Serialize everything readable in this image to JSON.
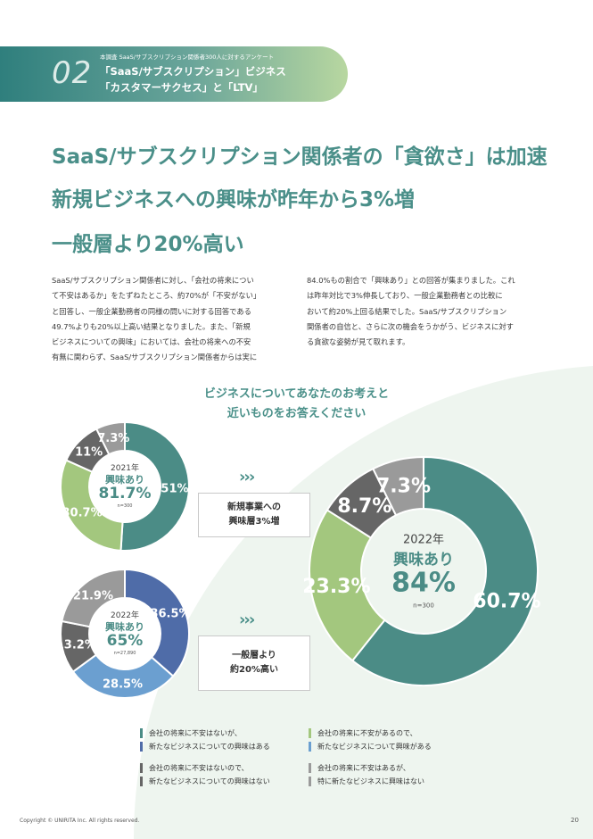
{
  "header": {
    "number": "02",
    "subtitle": "本調査 SaaS/サブスクリプション関係者300人に対するアンケート",
    "title_line1": "「SaaS/サブスクリプション」ビジネス",
    "title_line2": "「カスタマーサクセス」と「LTV」"
  },
  "headline": {
    "line1": "SaaS/サブスクリプション関係者の「貪欲さ」は加速",
    "line2": "新規ビジネスへの興味が昨年から3%増",
    "line3": "一般層より20%高い"
  },
  "body": {
    "left": [
      "SaaS/サブスクリプション関係者に対し、「会社の将来につい",
      "て不安はあるか」をたずねたところ、約70%が「不安がない」",
      "と回答し、一般企業勤務者の同様の問いに対する回答である",
      "49.7%よりも20%以上高い結果となりました。また、「新規",
      "ビジネスについての興味」においては、会社の将来への不安",
      "有無に関わらず、SaaS/サブスクリプション関係者からは実に"
    ],
    "right": [
      "84.0%もの割合で「興味あり」との回答が集まりました。これ",
      "は昨年対比で3%伸長しており、一般企業勤務者との比較に",
      "おいて約20%上回る結果でした。SaaS/サブスクリプション",
      "関係者の自信と、さらに次の機会をうかがう、ビジネスに対す",
      "る貪欲な姿勢が見て取れます。"
    ]
  },
  "question": {
    "line1": "ビジネスについてあなたのお考えと",
    "line2": "近いものをお答えください"
  },
  "colors": {
    "teal": "#4b8c86",
    "green": "#a3c77e",
    "darkgray": "#666666",
    "gray": "#9a9a9a",
    "blue": "#6b9fd0",
    "navy": "#4f6ca8"
  },
  "chart_data": [
    {
      "type": "pie",
      "title": "2021年",
      "center_label": "興味あり",
      "center_value": "81.7%",
      "n": "n=300",
      "slices": [
        {
          "value": 51,
          "label": "51%",
          "color": "#4b8c86"
        },
        {
          "value": 30.7,
          "label": "30.7%",
          "color": "#a3c77e"
        },
        {
          "value": 11,
          "label": "11%",
          "color": "#666666"
        },
        {
          "value": 7.3,
          "label": "7.3%",
          "color": "#9a9a9a"
        }
      ]
    },
    {
      "type": "pie",
      "title": "2022年",
      "center_label": "興味あり",
      "center_value": "65%",
      "n": "n=27,890",
      "slices": [
        {
          "value": 36.5,
          "label": "36.5%",
          "color": "#4f6ca8"
        },
        {
          "value": 28.5,
          "label": "28.5%",
          "color": "#6b9fd0"
        },
        {
          "value": 13.2,
          "label": "13.2%",
          "color": "#666666"
        },
        {
          "value": 21.9,
          "label": "21.9%",
          "color": "#9a9a9a"
        }
      ]
    },
    {
      "type": "pie",
      "title": "2022年",
      "center_label": "興味あり",
      "center_value": "84%",
      "n": "n=300",
      "slices": [
        {
          "value": 60.7,
          "label": "60.7%",
          "color": "#4b8c86"
        },
        {
          "value": 23.3,
          "label": "23.3%",
          "color": "#a3c77e"
        },
        {
          "value": 8.7,
          "label": "8.7%",
          "color": "#666666"
        },
        {
          "value": 7.3,
          "label": "7.3%",
          "color": "#9a9a9a"
        }
      ]
    }
  ],
  "callouts": {
    "arrows": "›››",
    "box1_line1": "新規事業への",
    "box1_line2": "興味層3%増",
    "box2_line1": "一般層より",
    "box2_line2": "約20%高い"
  },
  "legend": [
    {
      "line1": "会社の将来に不安はないが、",
      "line2": "新たなビジネスについての興味はある",
      "color1": "#4b8c86",
      "color2": "#4f6ca8"
    },
    {
      "line1": "会社の将来に不安があるので、",
      "line2": "新たなビジネスについて興味がある",
      "color1": "#a3c77e",
      "color2": "#6b9fd0"
    },
    {
      "line1": "会社の将来に不安はないので、",
      "line2": "新たなビジネスについての興味はない",
      "color1": "#666666",
      "color2": "#666666"
    },
    {
      "line1": "会社の将来に不安はあるが、",
      "line2": "特に新たなビジネスに興味はない",
      "color1": "#9a9a9a",
      "color2": "#9a9a9a"
    }
  ],
  "footer": {
    "copyright": "Copyright © UNIRITA Inc. All rights reserved.",
    "page": "20"
  }
}
